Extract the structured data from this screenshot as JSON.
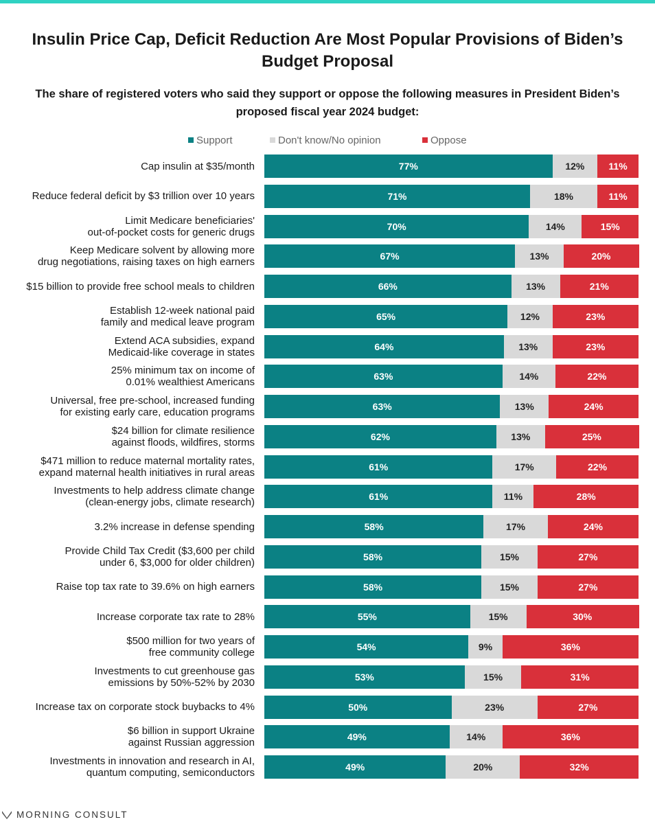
{
  "title": "Insulin Price Cap, Deficit Reduction Are Most Popular Provisions of Biden’s Budget Proposal",
  "subtitle": "The share of registered voters who said they support or oppose the following measures in President Biden’s proposed fiscal year 2024 budget:",
  "brand": "MORNING CONSULT",
  "colors": {
    "support": "#0b8184",
    "neutral": "#d9d9d9",
    "oppose": "#d9303a",
    "accent_bar": "#2fd2c2"
  },
  "chart_data": {
    "type": "bar",
    "orientation": "horizontal",
    "stacked": true,
    "value_unit": "%",
    "legend": [
      "Support",
      "Don't know/No opinion",
      "Oppose"
    ],
    "legend_position": "top",
    "categories": [
      "Cap insulin at $35/month",
      "Reduce federal deficit by $3 trillion over 10 years",
      "Limit Medicare beneficiaries' out-of-pocket costs for generic drugs",
      "Keep Medicare solvent by allowing more drug negotiations, raising taxes on high earners",
      "$15 billion to provide free school meals to children",
      "Establish 12-week national paid family and medical leave program",
      "Extend ACA subsidies, expand Medicaid-like coverage in states",
      "25% minimum tax on income of 0.01% wealthiest Americans",
      "Universal, free pre-school, increased funding for existing early care, education programs",
      "$24 billion for climate resilience against floods, wildfires, storms",
      "$471 million to reduce maternal mortality rates, expand maternal health initiatives in rural areas",
      "Investments to help address climate change (clean-energy jobs, climate research)",
      "3.2% increase in defense spending",
      "Provide Child Tax Credit ($3,600 per child under 6, $3,000 for older children)",
      "Raise top tax rate to 39.6% on high earners",
      "Increase corporate tax rate to 28%",
      "$500 million for two years of free community college",
      "Investments to cut greenhouse gas emissions by 50%-52% by 2030",
      "Increase tax on corporate stock buybacks to 4%",
      "$6 billion in support Ukraine against Russian aggression",
      "Investments in innovation and research in AI, quantum computing, semiconductors"
    ],
    "category_lines": [
      [
        "Cap insulin at $35/month"
      ],
      [
        "Reduce federal deficit by $3 trillion over 10 years"
      ],
      [
        "Limit Medicare beneficiaries'",
        "out-of-pocket costs for generic drugs"
      ],
      [
        "Keep Medicare solvent by allowing more",
        "drug negotiations, raising taxes on high earners"
      ],
      [
        "$15 billion to provide free school meals to children"
      ],
      [
        "Establish 12-week national paid",
        "family and medical leave program"
      ],
      [
        "Extend ACA subsidies, expand",
        "Medicaid-like coverage in states"
      ],
      [
        "25% minimum tax on income of",
        "0.01% wealthiest Americans"
      ],
      [
        "Universal, free pre-school, increased funding",
        "for existing early care, education programs"
      ],
      [
        "$24 billion for climate resilience",
        "against floods, wildfires, storms"
      ],
      [
        "$471 million to reduce maternal mortality rates,",
        "expand maternal health initiatives in rural areas"
      ],
      [
        "Investments to help address climate change",
        "(clean-energy jobs, climate research)"
      ],
      [
        "3.2% increase in defense spending"
      ],
      [
        "Provide Child Tax Credit ($3,600 per child",
        "under 6, $3,000 for older children)"
      ],
      [
        "Raise top tax rate to 39.6% on high earners"
      ],
      [
        "Increase corporate tax rate to 28%"
      ],
      [
        "$500 million for two years of",
        "free community college"
      ],
      [
        "Investments to cut greenhouse gas",
        "emissions by 50%-52% by 2030"
      ],
      [
        "Increase tax on corporate stock buybacks to 4%"
      ],
      [
        "$6 billion in support Ukraine",
        "against Russian aggression"
      ],
      [
        "Investments in innovation and research in AI,",
        "quantum computing, semiconductors"
      ]
    ],
    "series": [
      {
        "name": "Support",
        "values": [
          77,
          71,
          70,
          67,
          66,
          65,
          64,
          63,
          63,
          62,
          61,
          61,
          58,
          58,
          58,
          55,
          54,
          53,
          50,
          49,
          49
        ]
      },
      {
        "name": "Don't know/No opinion",
        "values": [
          12,
          18,
          14,
          13,
          13,
          12,
          13,
          14,
          13,
          13,
          17,
          11,
          17,
          15,
          15,
          15,
          9,
          15,
          23,
          14,
          20
        ]
      },
      {
        "name": "Oppose",
        "values": [
          11,
          11,
          15,
          20,
          21,
          23,
          23,
          22,
          24,
          25,
          22,
          28,
          24,
          27,
          27,
          30,
          36,
          31,
          27,
          36,
          32
        ]
      }
    ],
    "title": "Insulin Price Cap, Deficit Reduction Are Most Popular Provisions of Biden’s Budget Proposal",
    "xlabel": "",
    "ylabel": ""
  }
}
